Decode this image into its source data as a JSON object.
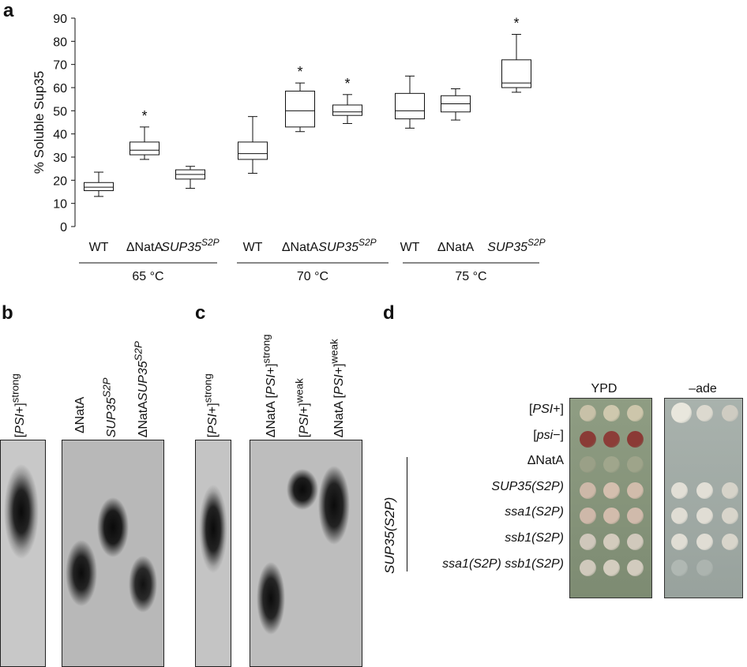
{
  "panels": {
    "a": "a",
    "b": "b",
    "c": "c",
    "d": "d"
  },
  "chart_data": {
    "type": "box",
    "ylabel": "% Soluble Sup35",
    "ylim": [
      0,
      90
    ],
    "yticks": [
      0,
      10,
      20,
      30,
      40,
      50,
      60,
      70,
      80,
      90
    ],
    "groups": [
      {
        "label": "65 °C",
        "boxes": [
          {
            "label": "WT",
            "sup": "",
            "min": 13,
            "q1": 15.5,
            "median": 17,
            "q3": 19,
            "max": 23.5,
            "star": false
          },
          {
            "label": "ΔNatA",
            "sup": "",
            "min": 29,
            "q1": 31,
            "median": 33,
            "q3": 36.5,
            "max": 43,
            "star": true
          },
          {
            "label": "SUP35",
            "sup": "S2P",
            "min": 16.5,
            "q1": 20.5,
            "median": 22.5,
            "q3": 24.5,
            "max": 26,
            "star": false
          }
        ]
      },
      {
        "label": "70 °C",
        "boxes": [
          {
            "label": "WT",
            "sup": "",
            "min": 23,
            "q1": 29,
            "median": 31.5,
            "q3": 36.5,
            "max": 47.5,
            "star": false
          },
          {
            "label": "ΔNatA",
            "sup": "",
            "min": 41,
            "q1": 43,
            "median": 50,
            "q3": 58.5,
            "max": 62,
            "star": true
          },
          {
            "label": "SUP35",
            "sup": "S2P",
            "min": 44.5,
            "q1": 48,
            "median": 49.5,
            "q3": 52.5,
            "max": 57,
            "star": true
          }
        ]
      },
      {
        "label": "75 °C",
        "boxes": [
          {
            "label": "WT",
            "sup": "",
            "min": 42.5,
            "q1": 46.5,
            "median": 50,
            "q3": 57.5,
            "max": 65,
            "star": false
          },
          {
            "label": "ΔNatA",
            "sup": "",
            "min": 46,
            "q1": 49.5,
            "median": 53,
            "q3": 56.5,
            "max": 59.5,
            "star": false
          },
          {
            "label": "SUP35",
            "sup": "S2P",
            "min": 58,
            "q1": 60,
            "median": 62,
            "q3": 72,
            "max": 83,
            "star": true
          }
        ]
      }
    ],
    "star_symbol": "*"
  },
  "blot_b": {
    "lane_1": {
      "pre": "[",
      "it": "PSI",
      "post": "+]",
      "sup": "strong"
    },
    "lane_2": {
      "text": "ΔNatA"
    },
    "lane_3": {
      "it": "SUP35",
      "sup": "S2P"
    },
    "lane_4": {
      "pre": "ΔNatA",
      "it": "SUP35",
      "sup": "S2P"
    }
  },
  "blot_c": {
    "lane_1": {
      "pre": "[",
      "it": "PSI",
      "post": "+]",
      "sup": "strong"
    },
    "lane_2": {
      "pre": "ΔNatA [",
      "it": "PSI",
      "post": "+]",
      "sup": "strong"
    },
    "lane_3": {
      "pre": "[",
      "it": "PSI",
      "post": "+]",
      "sup": "weak"
    },
    "lane_4": {
      "pre": "ΔNatA [",
      "it": "PSI",
      "post": "+]",
      "sup": "weak"
    }
  },
  "spot_assay": {
    "col_ypd": "YPD",
    "col_ade": "–ade",
    "rows": [
      {
        "pre": "[",
        "it": "PSI",
        "post": "+]"
      },
      {
        "pre": "[",
        "it": "psi",
        "post": "−]"
      },
      {
        "pre": "ΔNatA",
        "it": "",
        "post": ""
      },
      {
        "pre": "",
        "it": "SUP35(S2P)",
        "post": ""
      },
      {
        "pre": "",
        "it": "ssa1(S2P)",
        "post": ""
      },
      {
        "pre": "",
        "it": "ssb1(S2P)",
        "post": ""
      },
      {
        "pre": "",
        "it": "ssa1(S2P) ssb1(S2P)",
        "post": ""
      }
    ],
    "group_label": "SUP35(S2P)"
  }
}
